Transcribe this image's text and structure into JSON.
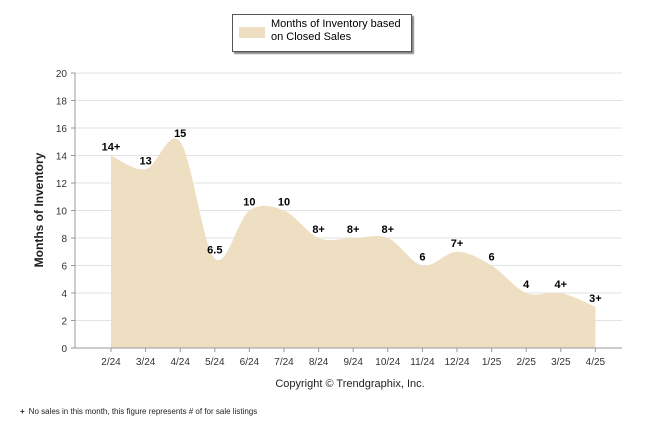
{
  "chart_data": {
    "type": "area",
    "categories": [
      "2/24",
      "3/24",
      "4/24",
      "5/24",
      "6/24",
      "7/24",
      "8/24",
      "9/24",
      "10/24",
      "11/24",
      "12/24",
      "1/25",
      "2/25",
      "3/25",
      "4/25"
    ],
    "series": [
      {
        "name": "Months of Inventory based on Closed Sales",
        "values": [
          14,
          13,
          15,
          6.5,
          10,
          10,
          8,
          8,
          8,
          6,
          7,
          6,
          4,
          4,
          3
        ],
        "labels": [
          "14+",
          "13",
          "15",
          "6.5",
          "10",
          "10",
          "8+",
          "8+",
          "8+",
          "6",
          "7+",
          "6",
          "4",
          "4+",
          "3+"
        ]
      }
    ],
    "ylabel": "Months of Inventory",
    "xlabel": "Copyright © Trendgraphix, Inc.",
    "ylim": [
      0,
      20
    ],
    "yticks": [
      "0",
      "2",
      "4",
      "6",
      "8",
      "10",
      "12",
      "14",
      "16",
      "18",
      "20"
    ],
    "grid": true,
    "legend_placement": "top-center",
    "colors": {
      "fill": "#efdfc2",
      "grid": "#e2e2e2",
      "axis": "#999999"
    }
  },
  "footnote": {
    "marker": "+",
    "text": "No sales in this month, this figure represents # of for sale listings"
  }
}
